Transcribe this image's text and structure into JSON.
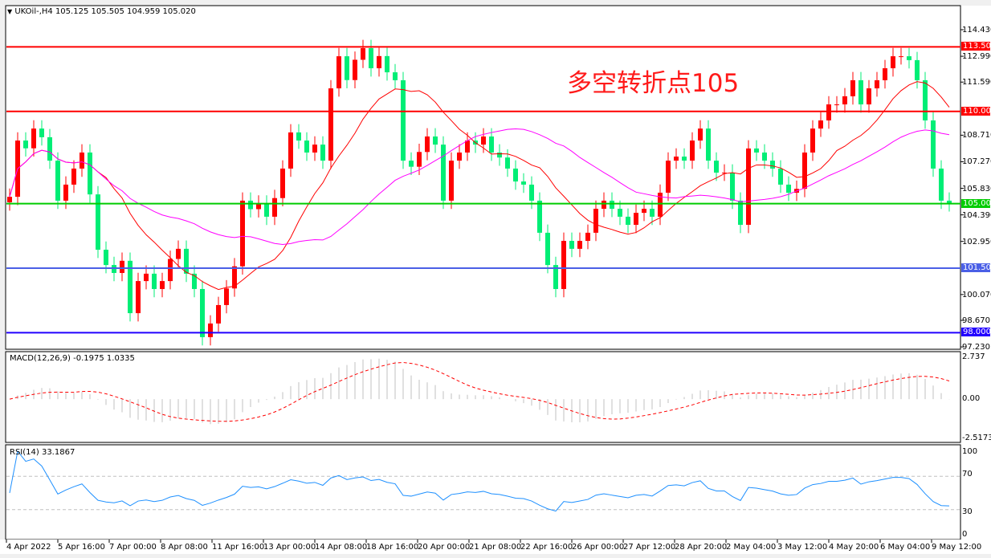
{
  "header": {
    "symbol_info": "UKOil-,H4  105.125 105.505 104.959 105.020",
    "dropdown_icon": "triangle-down"
  },
  "annotation": "多空转折点105",
  "price_axis": [
    "114.430",
    "112.990",
    "111.590",
    "110.000",
    "108.710",
    "107.270",
    "105.830",
    "104.390",
    "102.950",
    "101.500",
    "100.070",
    "98.670",
    "98.000",
    "97.230"
  ],
  "price_ticks": [
    114.43,
    112.99,
    111.59,
    108.71,
    107.27,
    105.83,
    104.39,
    102.95,
    100.07,
    98.67,
    97.23
  ],
  "price_tick_labels": [
    "114.430",
    "112.990",
    "111.590",
    "108.710",
    "107.270",
    "105.830",
    "104.390",
    "102.950",
    "100.070",
    "98.670",
    "97.230"
  ],
  "levels": [
    {
      "price": 113.5,
      "label": "113.500",
      "color": "#ff0000"
    },
    {
      "price": 110.0,
      "label": "110.000",
      "color": "#ff0000"
    },
    {
      "price": 105.0,
      "label": "105.000",
      "color": "#00cc00"
    },
    {
      "price": 101.5,
      "label": "101.500",
      "color": "#4a5fe6"
    },
    {
      "price": 98.0,
      "label": "98.000",
      "color": "#2200ff"
    }
  ],
  "colors": {
    "bull": "#ff0000",
    "bear": "#00ee76",
    "ma_fast": "#ff0000",
    "ma_slow": "#ff00ff",
    "macd_hist": "#c0c0c0",
    "macd_signal": "#ff0000",
    "rsi": "#1e90ff"
  },
  "macd": {
    "label": "MACD(12,26,9) -0.1975 1.0335",
    "axis": [
      "2.737",
      "0.00",
      "-2.5173"
    ]
  },
  "rsi": {
    "label": "RSI(14) 33.1867",
    "axis": [
      "100",
      "70",
      "30",
      "0"
    ]
  },
  "time_axis": [
    "4 Apr 2022",
    "5 Apr 16:00",
    "7 Apr 00:00",
    "8 Apr 08:00",
    "11 Apr 16:00",
    "13 Apr 00:00",
    "14 Apr 08:00",
    "18 Apr 16:00",
    "20 Apr 00:00",
    "21 Apr 08:00",
    "22 Apr 16:00",
    "26 Apr 00:00",
    "27 Apr 12:00",
    "28 Apr 20:00",
    "2 May 04:00",
    "3 May 12:00",
    "4 May 20:00",
    "6 May 04:00",
    "9 May 12:00"
  ],
  "closes": [
    105.37,
    108.42,
    108.0,
    109.07,
    108.6,
    107.33,
    105.16,
    106.03,
    106.9,
    107.77,
    105.5,
    102.5,
    101.67,
    101.24,
    101.9,
    99.06,
    100.8,
    101.2,
    100.37,
    100.8,
    102.0,
    102.55,
    101.2,
    100.37,
    97.76,
    98.5,
    99.5,
    100.4,
    101.6,
    105.16,
    104.7,
    105.0,
    104.29,
    105.3,
    106.9,
    108.86,
    108.42,
    107.77,
    108.2,
    107.33,
    111.25,
    112.99,
    111.7,
    112.8,
    113.43,
    112.34,
    113.0,
    112.12,
    111.69,
    107.33,
    107.0,
    107.8,
    108.64,
    108.2,
    105.16,
    107.33,
    107.77,
    108.42,
    108.2,
    108.64,
    107.77,
    107.5,
    106.9,
    106.2,
    106.03,
    105.16,
    103.42,
    101.67,
    100.37,
    102.98,
    102.55,
    102.98,
    103.42,
    104.72,
    105.16,
    104.72,
    104.29,
    103.85,
    104.5,
    104.72,
    104.29,
    105.59,
    107.33,
    107.55,
    107.33,
    108.42,
    109.07,
    107.33,
    106.68,
    106.68,
    105.16,
    103.85,
    107.99,
    107.77,
    107.33,
    106.9,
    106.03,
    105.59,
    105.8,
    107.77,
    109.07,
    109.51,
    110.38,
    110.38,
    110.82,
    111.69,
    110.38,
    111.25,
    111.69,
    112.34,
    112.99,
    112.99,
    112.78,
    111.69,
    109.51,
    106.9,
    105.16,
    105.02
  ]
}
